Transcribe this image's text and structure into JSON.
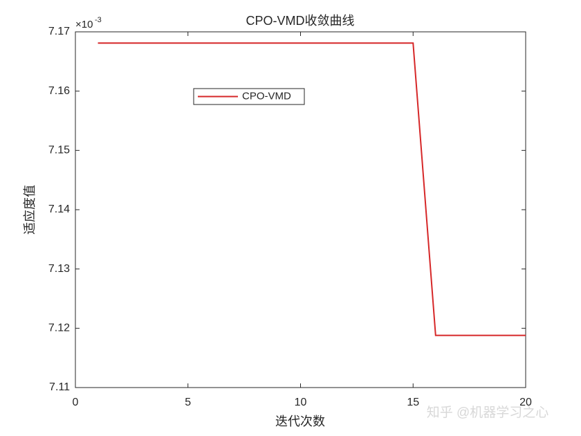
{
  "chart_data": {
    "type": "line",
    "title": "CPO-VMD收敛曲线",
    "xlabel": "迭代次数",
    "ylabel": "适应度值",
    "y_multiplier": {
      "base": "×10",
      "exponent": "-3"
    },
    "x": [
      1,
      2,
      3,
      4,
      5,
      6,
      7,
      8,
      9,
      10,
      11,
      12,
      13,
      14,
      15,
      16,
      17,
      18,
      19,
      20
    ],
    "series": [
      {
        "name": "CPO-VMD",
        "color": "#d62728",
        "values": [
          7.1681,
          7.1681,
          7.1681,
          7.1681,
          7.1681,
          7.1681,
          7.1681,
          7.1681,
          7.1681,
          7.1681,
          7.1681,
          7.1681,
          7.1681,
          7.1681,
          7.1681,
          7.1188,
          7.1188,
          7.1188,
          7.1188,
          7.1188
        ]
      }
    ],
    "xlim": [
      0,
      20
    ],
    "xticks": [
      0,
      5,
      10,
      15,
      20
    ],
    "ylim": [
      7.11,
      7.17
    ],
    "yticks": [
      7.11,
      7.12,
      7.13,
      7.14,
      7.15,
      7.16,
      7.17
    ],
    "grid": false,
    "legend_position": "upper left"
  },
  "watermark": "知乎 @机器学习之心"
}
